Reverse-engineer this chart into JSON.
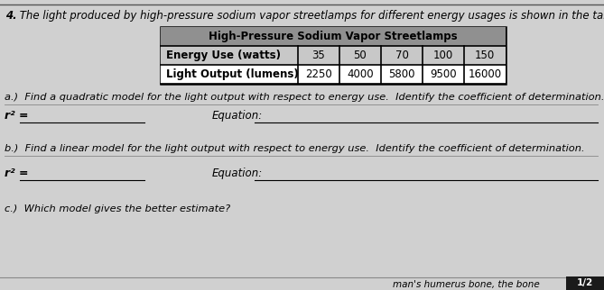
{
  "question_number": "4.",
  "question_text": " The light produced by high-pressure sodium vapor streetlamps for different energy usages is shown in the table.",
  "table_title": "High-Pressure Sodium Vapor Streetlamps",
  "row1_label": "Energy Use (watts)",
  "row2_label": "Light Output (lumens)",
  "col_values": [
    "35",
    "50",
    "70",
    "100",
    "150"
  ],
  "row2_values": [
    "2250",
    "4000",
    "5800",
    "9500",
    "16000"
  ],
  "part_a_text": "a.)  Find a quadratic model for the light output with respect to energy use.  Identify the coefficient of determination.",
  "r2_label": "r² =",
  "equation_label": "Equation:",
  "part_b_text": "b.)  Find a linear model for the light output with respect to energy use.  Identify the coefficient of determination.",
  "part_c_text": "c.)  Which model gives the better estimate?",
  "footer_text": "man's humerus bone, the bone",
  "page_label": "1/2",
  "bg_color": "#d0d0d0",
  "table_header_bg": "#909090",
  "table_row1_bg": "#c8c8c8",
  "table_row2_bg": "#ffffff",
  "table_border_color": "#000000"
}
